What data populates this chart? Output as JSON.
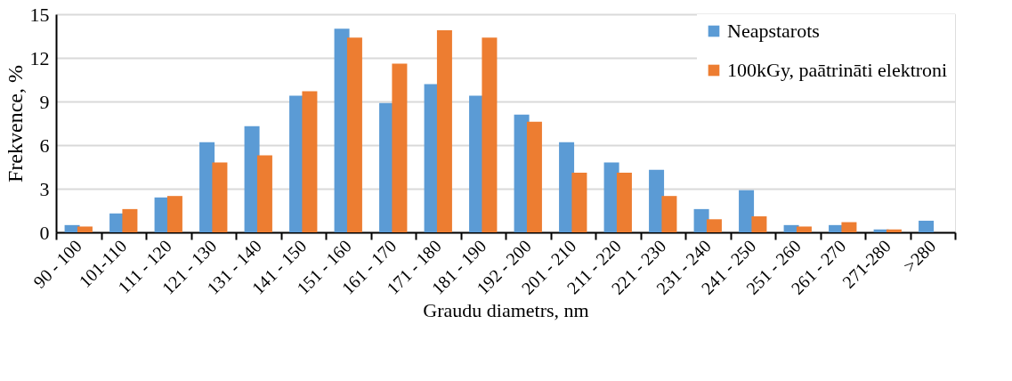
{
  "chart_data": {
    "type": "bar",
    "xlabel": "Graudu diametrs, nm",
    "ylabel": "Frekvence, %",
    "categories": [
      "90 - 100",
      "101-110",
      "111 - 120",
      "121 - 130",
      "131 - 140",
      "141 - 150",
      "151 - 160",
      "161 - 170",
      "171 - 180",
      "181 - 190",
      "192 - 200",
      "201 - 210",
      "211 - 220",
      "221 - 230",
      "231 - 240",
      "241 - 250",
      "251 - 260",
      "261 - 270",
      "271-280",
      ">280"
    ],
    "series": [
      {
        "name": "Neapstarots",
        "color": "#5b9bd5",
        "values": [
          0.5,
          1.3,
          2.4,
          6.2,
          7.3,
          9.4,
          14.0,
          8.9,
          10.2,
          9.4,
          8.1,
          6.2,
          4.8,
          4.3,
          1.6,
          2.9,
          0.5,
          0.5,
          0.2,
          0.8
        ]
      },
      {
        "name": "100kGy, paātrināti elektroni",
        "color": "#ed7d31",
        "values": [
          0.4,
          1.6,
          2.5,
          4.8,
          5.3,
          9.7,
          13.4,
          11.6,
          13.9,
          13.4,
          7.6,
          4.1,
          4.1,
          2.5,
          0.9,
          1.1,
          0.4,
          0.7,
          0.2,
          null
        ]
      }
    ],
    "ylim": [
      0,
      15
    ],
    "yticks": [
      0,
      3,
      6,
      9,
      12,
      15
    ],
    "grid": "y",
    "legend": "top right"
  }
}
